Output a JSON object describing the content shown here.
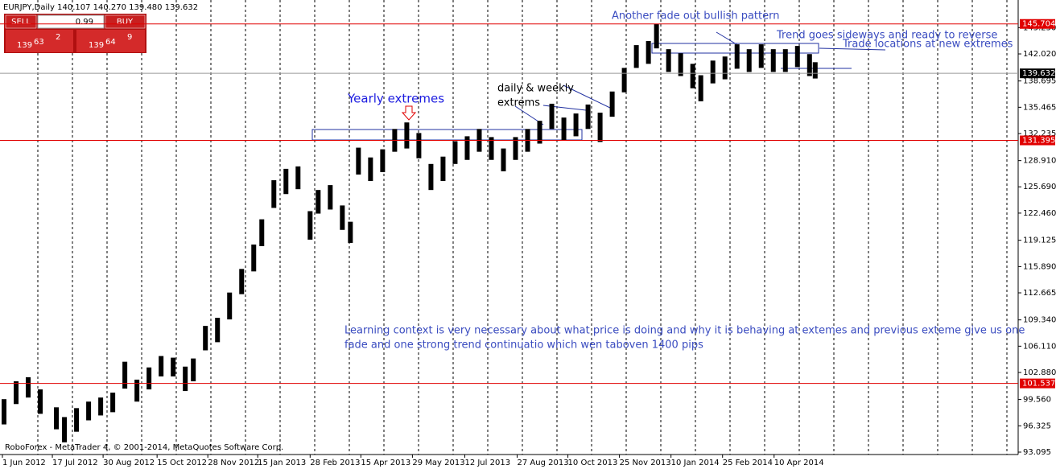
{
  "header": {
    "symbol": "EURJPY,Daily  140.107 140.270 139.480 139.632"
  },
  "trade_panel": {
    "sell": "SELL",
    "buy": "BUY",
    "lot": "0.99",
    "sell_big": "139",
    "sell_pips": "63",
    "sell_frac": "2",
    "buy_big": "139",
    "buy_pips": "64",
    "buy_frac": "9"
  },
  "footer": "RoboForex - MetaTrader 4, © 2001-2014, MetaQuotes Software Corp.",
  "chart_data": {
    "type": "ohlc",
    "color": "#000000",
    "x": [
      2.5,
      10,
      17.5,
      25,
      35,
      40,
      47.5,
      55,
      62.5,
      70,
      77.5,
      85,
      92.5,
      100,
      107.5,
      115,
      120,
      127.5,
      135,
      142.5,
      150,
      157.5,
      162.5,
      170,
      177.5,
      185,
      192.5,
      197.5,
      205,
      212.5,
      217.5,
      222.5,
      230,
      237.5,
      245,
      252.5,
      260,
      267.5,
      275,
      282.5,
      290,
      297.5,
      305,
      312.5,
      320,
      327.5,
      335,
      342.5,
      350,
      357.5,
      365,
      372.5,
      380,
      387.5,
      395,
      402.5,
      407.5,
      415,
      422.5,
      430,
      435,
      442.5,
      450,
      457.5,
      465,
      472.5,
      480,
      487.5,
      495,
      502.5,
      506
    ],
    "high": [
      99.6,
      101.8,
      102.3,
      100.8,
      98.6,
      97.4,
      98.5,
      99.3,
      99.8,
      100.4,
      104.2,
      102.0,
      103.5,
      104.9,
      104.7,
      103.6,
      104.6,
      108.6,
      109.6,
      112.7,
      115.6,
      118.6,
      121.7,
      126.5,
      127.9,
      128.2,
      122.7,
      125.3,
      125.9,
      123.4,
      121.4,
      130.5,
      129.3,
      130.3,
      132.8,
      133.6,
      132.3,
      128.5,
      129.4,
      131.3,
      131.9,
      132.8,
      131.8,
      130.4,
      131.8,
      132.8,
      133.8,
      135.9,
      134.2,
      134.7,
      135.8,
      134.8,
      137.4,
      140.3,
      143.1,
      143.6,
      145.7,
      142.6,
      142.1,
      140.8,
      139.4,
      141.2,
      141.7,
      143.2,
      142.6,
      143.2,
      142.6,
      142.6,
      143.0,
      142.0,
      141.0
    ],
    "low": [
      96.5,
      99.0,
      99.8,
      97.8,
      95.9,
      94.3,
      95.6,
      97.0,
      97.6,
      98.0,
      100.9,
      99.3,
      100.8,
      102.4,
      102.4,
      100.6,
      101.8,
      105.6,
      106.6,
      109.4,
      112.5,
      115.3,
      118.4,
      123.1,
      124.8,
      125.4,
      119.2,
      122.4,
      122.9,
      120.4,
      118.8,
      127.2,
      126.4,
      127.5,
      130.0,
      130.4,
      129.2,
      125.3,
      126.4,
      128.5,
      129.0,
      130.0,
      129.0,
      127.6,
      129.0,
      130.0,
      131.0,
      132.8,
      131.4,
      131.9,
      132.8,
      131.2,
      134.3,
      137.3,
      140.3,
      140.8,
      142.7,
      139.8,
      139.3,
      137.8,
      136.2,
      138.4,
      138.9,
      140.2,
      139.8,
      140.3,
      139.8,
      139.8,
      140.4,
      139.3,
      139.0
    ],
    "xlim": [
      0,
      632
    ],
    "ylim": [
      92.8,
      148.15
    ],
    "xticks": [
      {
        "value": 1.5,
        "label": "1 Jun 2012"
      },
      {
        "value": 32.5,
        "label": "17 Jul 2012"
      },
      {
        "value": 64,
        "label": "30 Aug 2012"
      },
      {
        "value": 97.5,
        "label": "15 Oct 2012"
      },
      {
        "value": 129,
        "label": "28 Nov 2012"
      },
      {
        "value": 160,
        "label": "15 Jan 2013"
      },
      {
        "value": 192.5,
        "label": "28 Feb 2013"
      },
      {
        "value": 224,
        "label": "15 Apr 2013"
      },
      {
        "value": 256,
        "label": "29 May 2013"
      },
      {
        "value": 288.5,
        "label": "12 Jul 2013"
      },
      {
        "value": 321,
        "label": "27 Aug 2013"
      },
      {
        "value": 352.5,
        "label": "10 Oct 2013"
      },
      {
        "value": 384.5,
        "label": "25 Nov 2013"
      },
      {
        "value": 416.5,
        "label": "10 Jan 2014"
      },
      {
        "value": 448.5,
        "label": "25 Feb 2014"
      },
      {
        "value": 480.5,
        "label": "10 Apr 2014"
      }
    ],
    "yticks": [
      93.095,
      96.325,
      {
        "value": 99.56,
        "label": "99.560"
      },
      {
        "value": 102.88,
        "label": "102.880"
      },
      {
        "value": 106.11,
        "label": "106.110"
      },
      {
        "value": 109.34,
        "label": "109.340"
      },
      112.665,
      {
        "value": 115.89,
        "label": "115.890"
      },
      119.125,
      {
        "value": 122.46,
        "label": "122.460"
      },
      {
        "value": 125.69,
        "label": "125.690"
      },
      {
        "value": 128.91,
        "label": "128.910"
      },
      132.235,
      135.465,
      138.695,
      {
        "value": 142.02,
        "label": "142.020"
      },
      {
        "value": 145.25,
        "label": "145.250"
      }
    ],
    "levels": [
      {
        "value": 145.704,
        "color": "#e00000"
      },
      {
        "value": 131.395,
        "color": "#e00000"
      },
      {
        "value": 101.537,
        "color": "#e00000"
      },
      {
        "value": 139.632,
        "color": "#000000"
      }
    ],
    "annotations": [
      "Another fade out bullish pattern",
      "Trend goes sideways and ready to reverse",
      "Trade locations at new extremes",
      "Yearly extremes",
      "daily & weekly",
      "extrems",
      "Learning context is very necessary about what price is doing and why it is behaving at extemes and previous exteme give us one",
      "fade and one strong trend continuatio  which wen taboven 1400 pips"
    ]
  }
}
